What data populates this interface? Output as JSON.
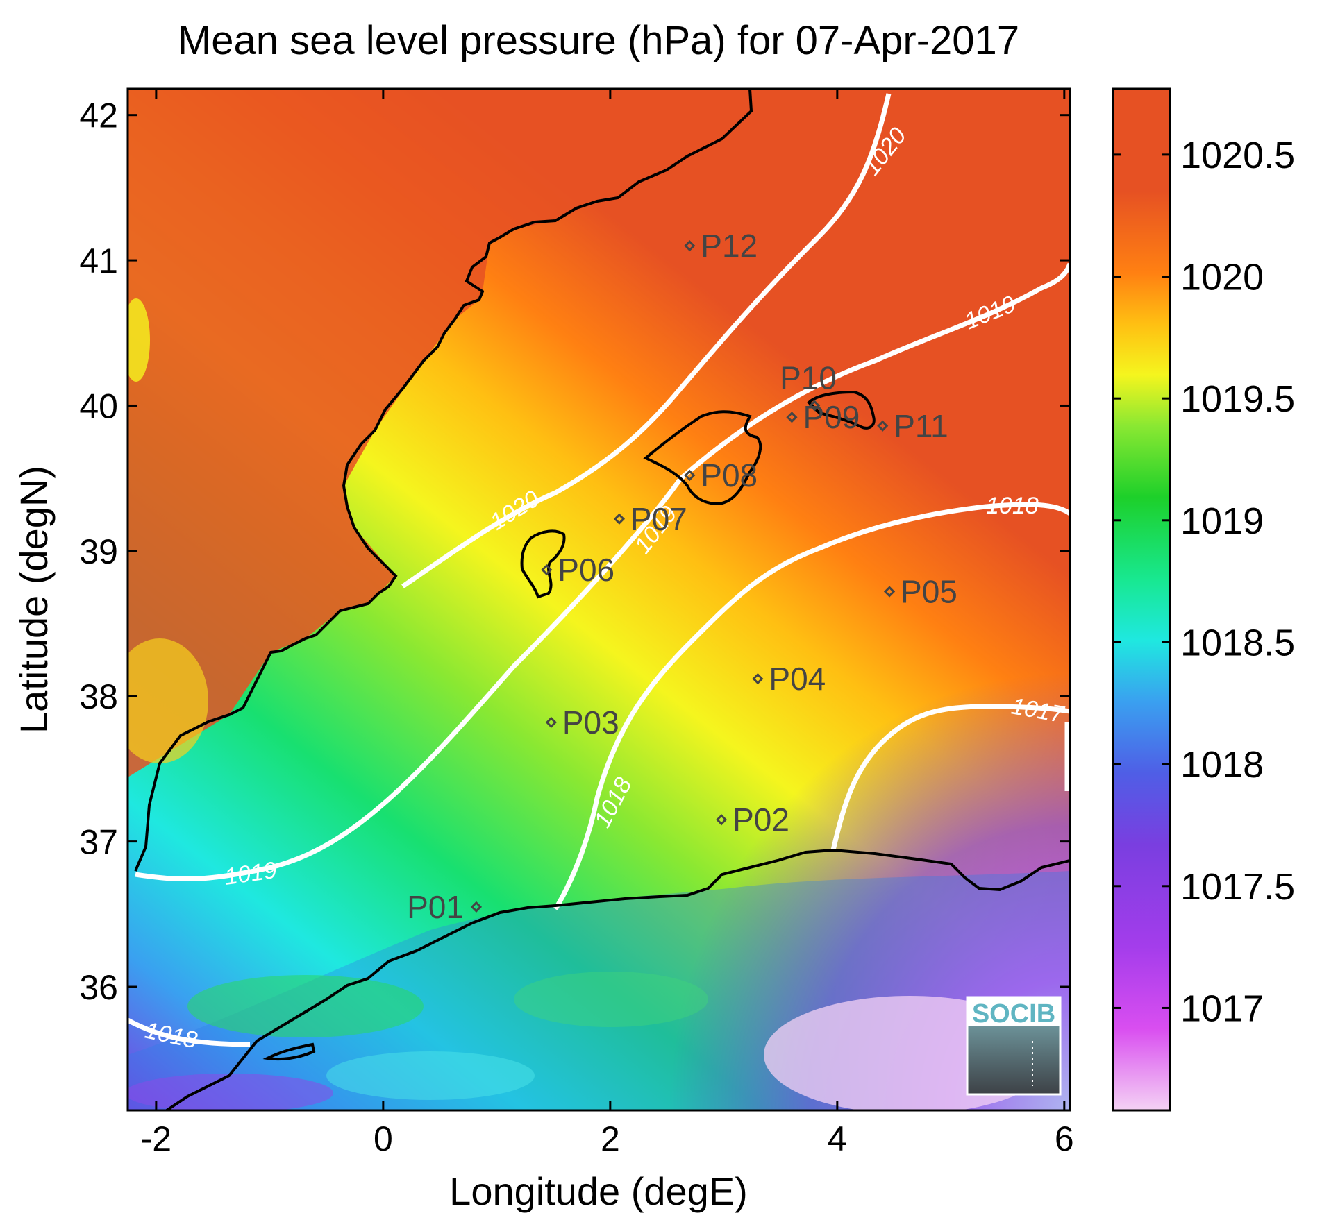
{
  "chart_data": {
    "type": "heatmap",
    "title": "Mean sea level pressure (hPa) for 07-Apr-2017",
    "xlabel": "Longitude (degE)",
    "ylabel": "Latitude (degN)",
    "xlim": [
      -2.25,
      6.05
    ],
    "ylim": [
      35.15,
      42.18
    ],
    "x_ticks": [
      -2,
      0,
      2,
      4,
      6
    ],
    "x_tick_labels": [
      "-2",
      "0",
      "2",
      "4",
      "6"
    ],
    "y_ticks": [
      36,
      37,
      38,
      39,
      40,
      41,
      42
    ],
    "y_tick_labels": [
      "36",
      "37",
      "38",
      "39",
      "40",
      "41",
      "42"
    ],
    "colorbar": {
      "range": [
        1016.58,
        1020.77
      ],
      "ticks": [
        1017,
        1017.5,
        1018,
        1018.5,
        1019,
        1019.5,
        1020,
        1020.5
      ],
      "tick_labels": [
        "1017",
        "1017.5",
        "1018",
        "1018.5",
        "1019",
        "1019.5",
        "1020",
        "1020.5"
      ],
      "colors": [
        "#f4d2f4",
        "#c23df0",
        "#7a3ee0",
        "#4f5ee6",
        "#3aa0f0",
        "#1fe8e0",
        "#18e070",
        "#1dd02a",
        "#8ae832",
        "#f5f51e",
        "#ffbf12",
        "#ff8012",
        "#e65123"
      ]
    },
    "contour_levels": [
      "1017",
      "1018",
      "1019",
      "1020"
    ],
    "stations": [
      {
        "name": "P01",
        "lon": 0.82,
        "lat": 36.55
      },
      {
        "name": "P02",
        "lon": 2.98,
        "lat": 37.15
      },
      {
        "name": "P03",
        "lon": 1.48,
        "lat": 37.82
      },
      {
        "name": "P04",
        "lon": 3.3,
        "lat": 38.12
      },
      {
        "name": "P05",
        "lon": 4.46,
        "lat": 38.72
      },
      {
        "name": "P06",
        "lon": 1.44,
        "lat": 38.87
      },
      {
        "name": "P07",
        "lon": 2.08,
        "lat": 39.22
      },
      {
        "name": "P08",
        "lon": 2.7,
        "lat": 39.52
      },
      {
        "name": "P09",
        "lon": 3.6,
        "lat": 39.92
      },
      {
        "name": "P10",
        "lon": 3.8,
        "lat": 40.0
      },
      {
        "name": "P11",
        "lon": 4.4,
        "lat": 39.86
      },
      {
        "name": "P12",
        "lon": 2.7,
        "lat": 41.1
      }
    ],
    "grid": false,
    "logo": "SOCIB"
  }
}
